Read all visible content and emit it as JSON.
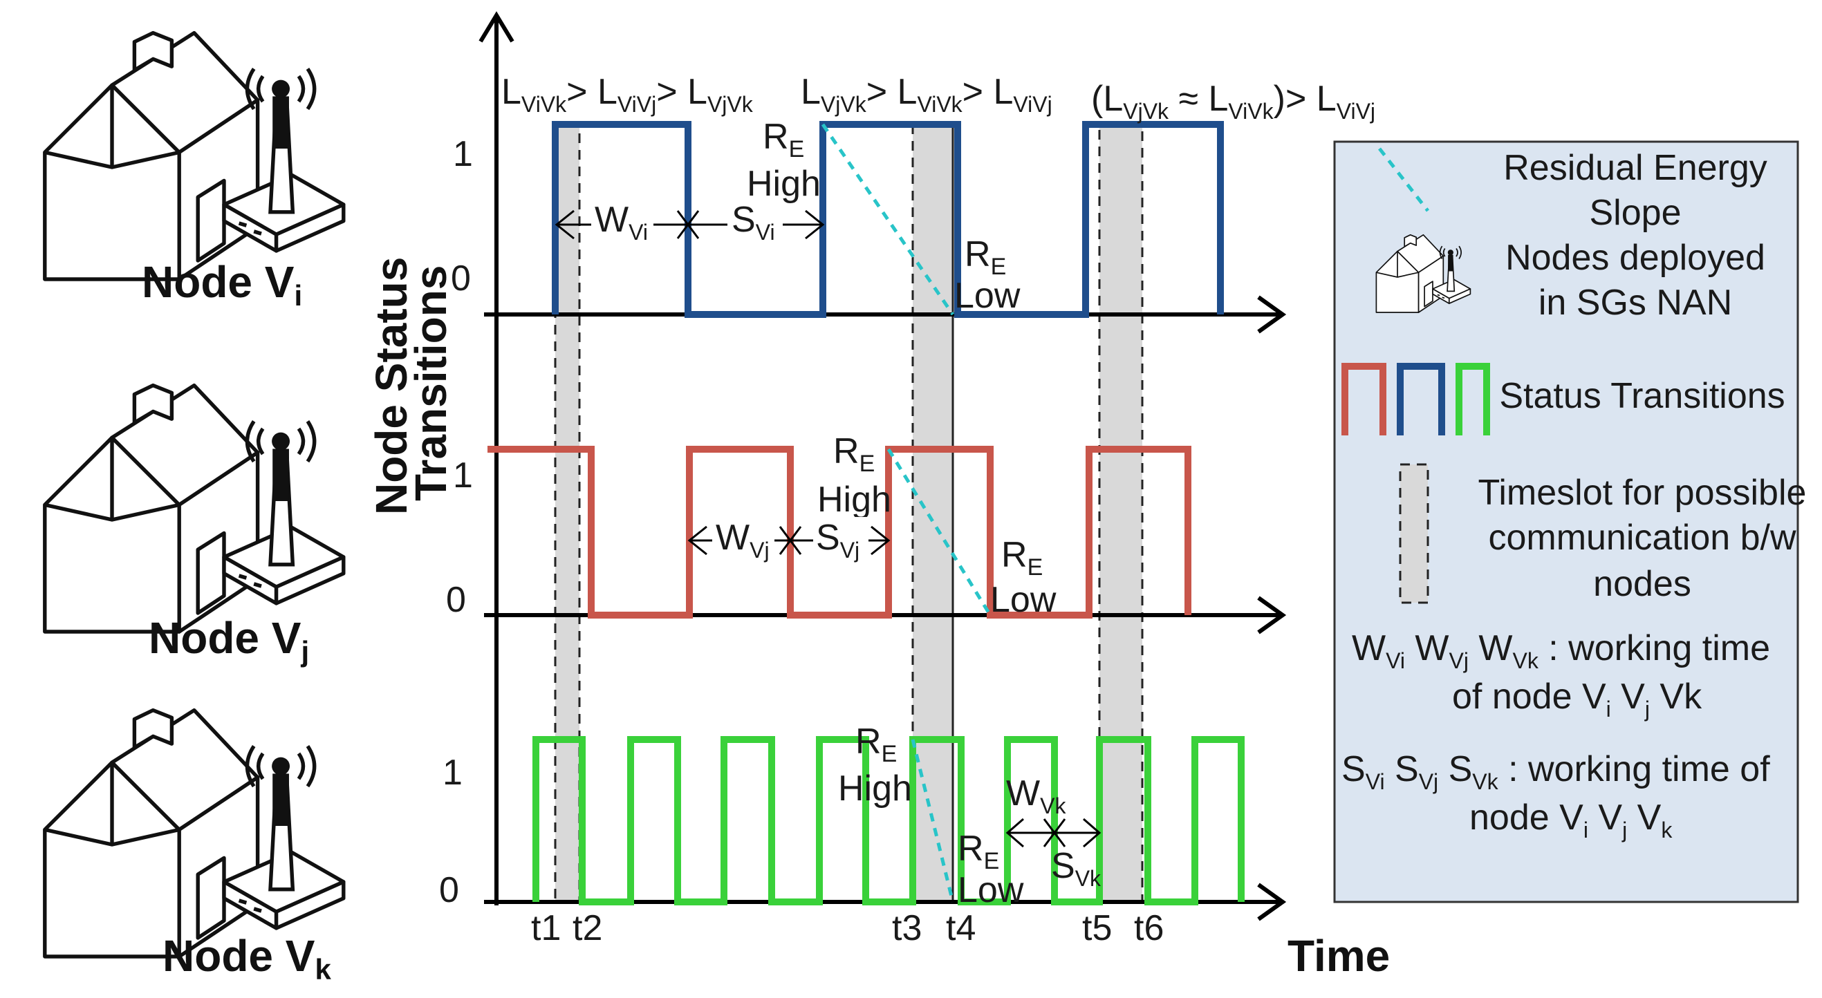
{
  "colors": {
    "node_vi": "#1f4e8c",
    "node_vj": "#c8564b",
    "node_vk": "#3ad13a",
    "slope": "#28c4c8",
    "legend_bg": "#dbe5f1",
    "slot": "#d9d9d9"
  },
  "nodes": [
    {
      "label": "Node V",
      "sub": "i",
      "icon": "house-with-antenna-icon"
    },
    {
      "label": "Node V",
      "sub": "j",
      "icon": "house-with-antenna-icon"
    },
    {
      "label": "Node V",
      "sub": "k",
      "icon": "house-with-antenna-icon"
    }
  ],
  "axes": {
    "ylabel_line1": "Node Status",
    "ylabel_line2": "Transitions",
    "xlabel": "Time",
    "level_one": "1",
    "level_zero": "0"
  },
  "headers": {
    "h1": {
      "a": "L",
      "a_sub": "ViVk",
      "gt1": "> L",
      "b_sub": "ViVj",
      "gt2": "> L",
      "c_sub": "VjVk"
    },
    "h2": {
      "a": "L",
      "a_sub": "VjVk",
      "gt1": "> L",
      "b_sub": "ViVk",
      "gt2": "> L",
      "c_sub": "ViVj"
    },
    "h3": {
      "open": "(L",
      "a_sub": "VjVk",
      "approx": " ≈ L",
      "b_sub": "ViVk",
      "close": ")> L",
      "c_sub": "ViVj"
    }
  },
  "energy": {
    "r": "R",
    "r_sub": "E",
    "high": "High",
    "low": "Low"
  },
  "intervals": {
    "w": "W",
    "s": "S",
    "wvi_sub": "Vi",
    "svi_sub": "Vi",
    "wvj_sub": "Vj",
    "svj_sub": "Vj",
    "wvk_sub": "Vk",
    "svk_sub": "Vk"
  },
  "ticks": [
    "t1",
    "t2",
    "t3",
    "t4",
    "t5",
    "t6"
  ],
  "legend": {
    "slope_line1": "Residual Energy",
    "slope_line2": "Slope",
    "nodes_line1": "Nodes  deployed",
    "nodes_line2": "in SGs NAN",
    "status": "Status Transitions",
    "slot_line1": "Timeslot for possible",
    "slot_line2": "communication b/w",
    "slot_line3": "nodes",
    "w_def": {
      "w1": "W",
      "w1_sub": "Vi",
      "w2": " W",
      "w2_sub": "Vj",
      "w3": " W",
      "w3_sub": "Vk",
      "text": "  :   working time",
      "line2_a": "of node V",
      "line2_a_sub": "i",
      "line2_b": " V",
      "line2_b_sub": "j",
      "line2_c": " Vk"
    },
    "s_def": {
      "s1": "S",
      "s1_sub": "Vi",
      "s2": " S",
      "s2_sub": "Vj",
      "s3": " S",
      "s3_sub": "Vk",
      "text": "  :   working time of",
      "line2_a": "node V",
      "line2_a_sub": "i",
      "line2_b": " V",
      "line2_b_sub": "j",
      "line2_c": " V",
      "line2_c_sub": "k"
    }
  }
}
